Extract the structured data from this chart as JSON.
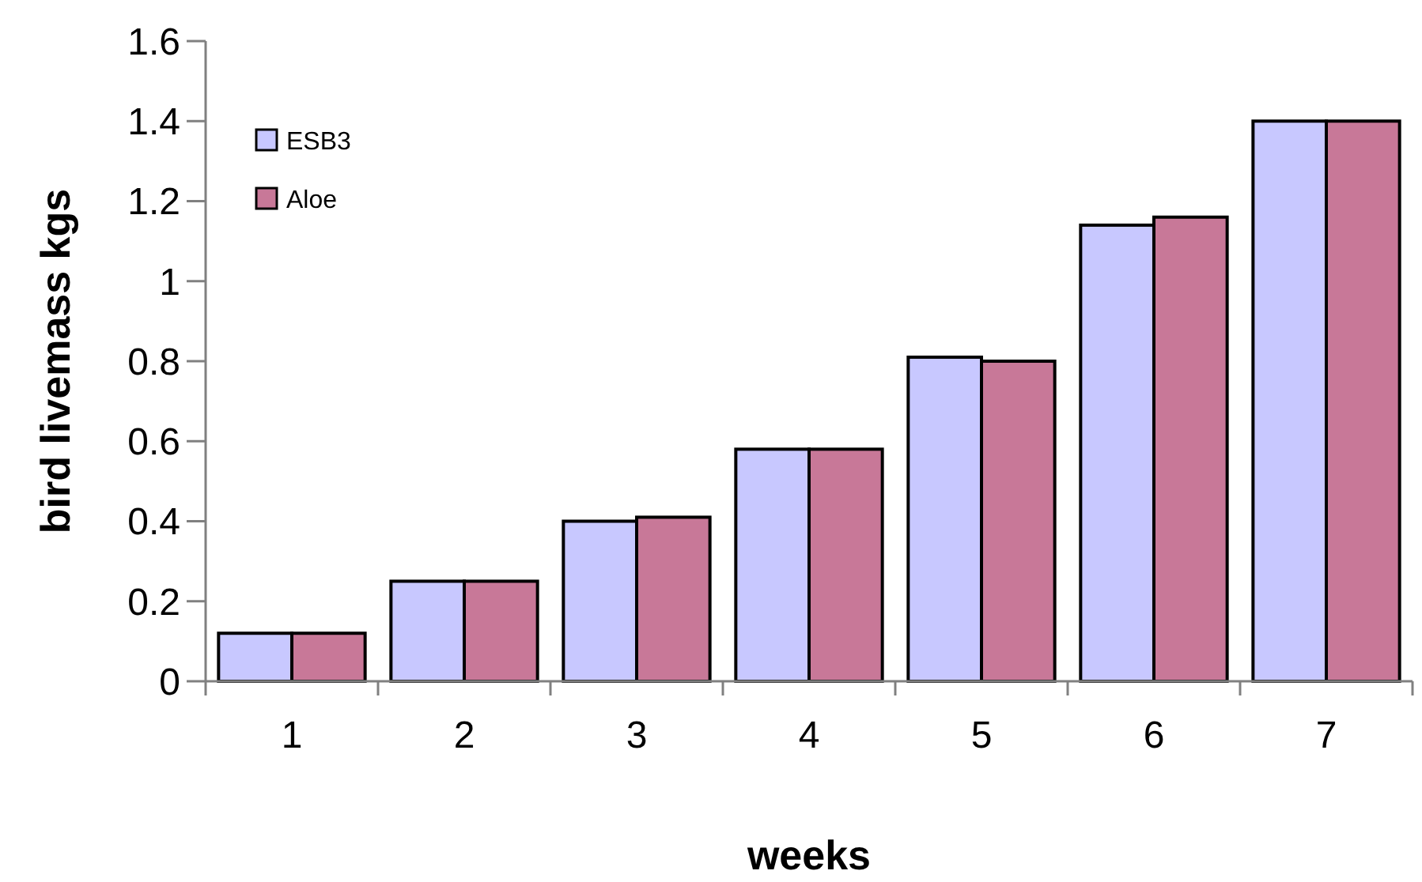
{
  "chart_data": {
    "type": "bar",
    "xlabel": "weeks",
    "ylabel": "bird livemass kgs",
    "categories": [
      "1",
      "2",
      "3",
      "4",
      "5",
      "6",
      "7"
    ],
    "series": [
      {
        "name": "ESB3",
        "color": "#c8c8ff",
        "values": [
          0.12,
          0.25,
          0.4,
          0.58,
          0.81,
          1.14,
          1.4
        ]
      },
      {
        "name": "Aloe",
        "color": "#c87898",
        "values": [
          0.12,
          0.25,
          0.41,
          0.58,
          0.8,
          1.16,
          1.4
        ]
      }
    ],
    "ylim": [
      0,
      1.6
    ],
    "yticks": [
      0,
      {
        "value": 0.2,
        "label": "0.2"
      },
      {
        "value": 0.4,
        "label": "0.4"
      },
      {
        "value": 0.6,
        "label": "0.6"
      },
      {
        "value": 0.8,
        "label": "0.8"
      },
      1,
      {
        "value": 1.2,
        "label": "1.2"
      },
      {
        "value": 1.4,
        "label": "1.4"
      },
      {
        "value": 1.6,
        "label": "1.6"
      }
    ],
    "grid": false,
    "legend": "top left"
  }
}
